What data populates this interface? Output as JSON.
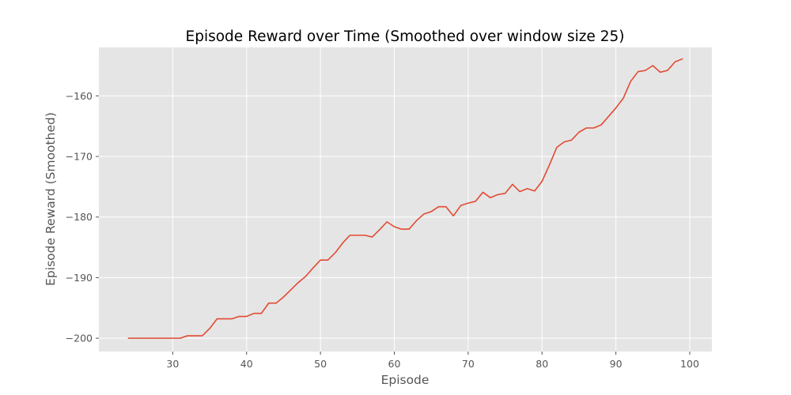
{
  "chart_data": {
    "type": "line",
    "title": "Episode Reward over Time (Smoothed over window size 25)",
    "xlabel": "Episode",
    "ylabel": "Episode Reward (Smoothed)",
    "xlim": [
      20,
      103
    ],
    "ylim": [
      -202.2,
      -152.0
    ],
    "xticks": [
      30,
      40,
      50,
      60,
      70,
      80,
      90,
      100
    ],
    "yticks": [
      -200,
      -190,
      -180,
      -170,
      -160
    ],
    "grid": true,
    "style": "ggplot",
    "series": [
      {
        "color": "#E24A33",
        "x": [
          24,
          25,
          26,
          27,
          28,
          29,
          30,
          31,
          32,
          33,
          34,
          35,
          36,
          37,
          38,
          39,
          40,
          41,
          42,
          43,
          44,
          45,
          46,
          47,
          48,
          49,
          50,
          51,
          52,
          53,
          54,
          55,
          56,
          57,
          58,
          59,
          60,
          61,
          62,
          63,
          64,
          65,
          66,
          67,
          68,
          69,
          70,
          71,
          72,
          73,
          74,
          75,
          76,
          77,
          78,
          79,
          80,
          81,
          82,
          83,
          84,
          85,
          86,
          87,
          88,
          89,
          90,
          91,
          92,
          93,
          94,
          95,
          96,
          97,
          98,
          99
        ],
        "values": [
          -200,
          -200,
          -200,
          -200,
          -200,
          -200,
          -200,
          -200,
          -199.6,
          -199.6,
          -199.6,
          -198.4,
          -196.8,
          -196.8,
          -196.8,
          -196.4,
          -196.4,
          -195.9,
          -195.9,
          -194.2,
          -194.2,
          -193.2,
          -192,
          -190.8,
          -189.8,
          -188.4,
          -187.1,
          -187.1,
          -185.9,
          -184.3,
          -183,
          -183,
          -183,
          -183.3,
          -182.1,
          -180.8,
          -181.6,
          -182,
          -182,
          -180.6,
          -179.5,
          -179.1,
          -178.3,
          -178.3,
          -179.8,
          -178.1,
          -177.7,
          -177.4,
          -175.9,
          -176.8,
          -176.3,
          -176.1,
          -174.6,
          -175.8,
          -175.3,
          -175.7,
          -174.1,
          -171.4,
          -168.5,
          -167.6,
          -167.3,
          -166,
          -165.3,
          -165.3,
          -164.8,
          -163.4,
          -162,
          -160.4,
          -157.6,
          -156,
          -155.8,
          -155,
          -156.1,
          -155.8,
          -154.4,
          -153.9
        ]
      }
    ]
  }
}
